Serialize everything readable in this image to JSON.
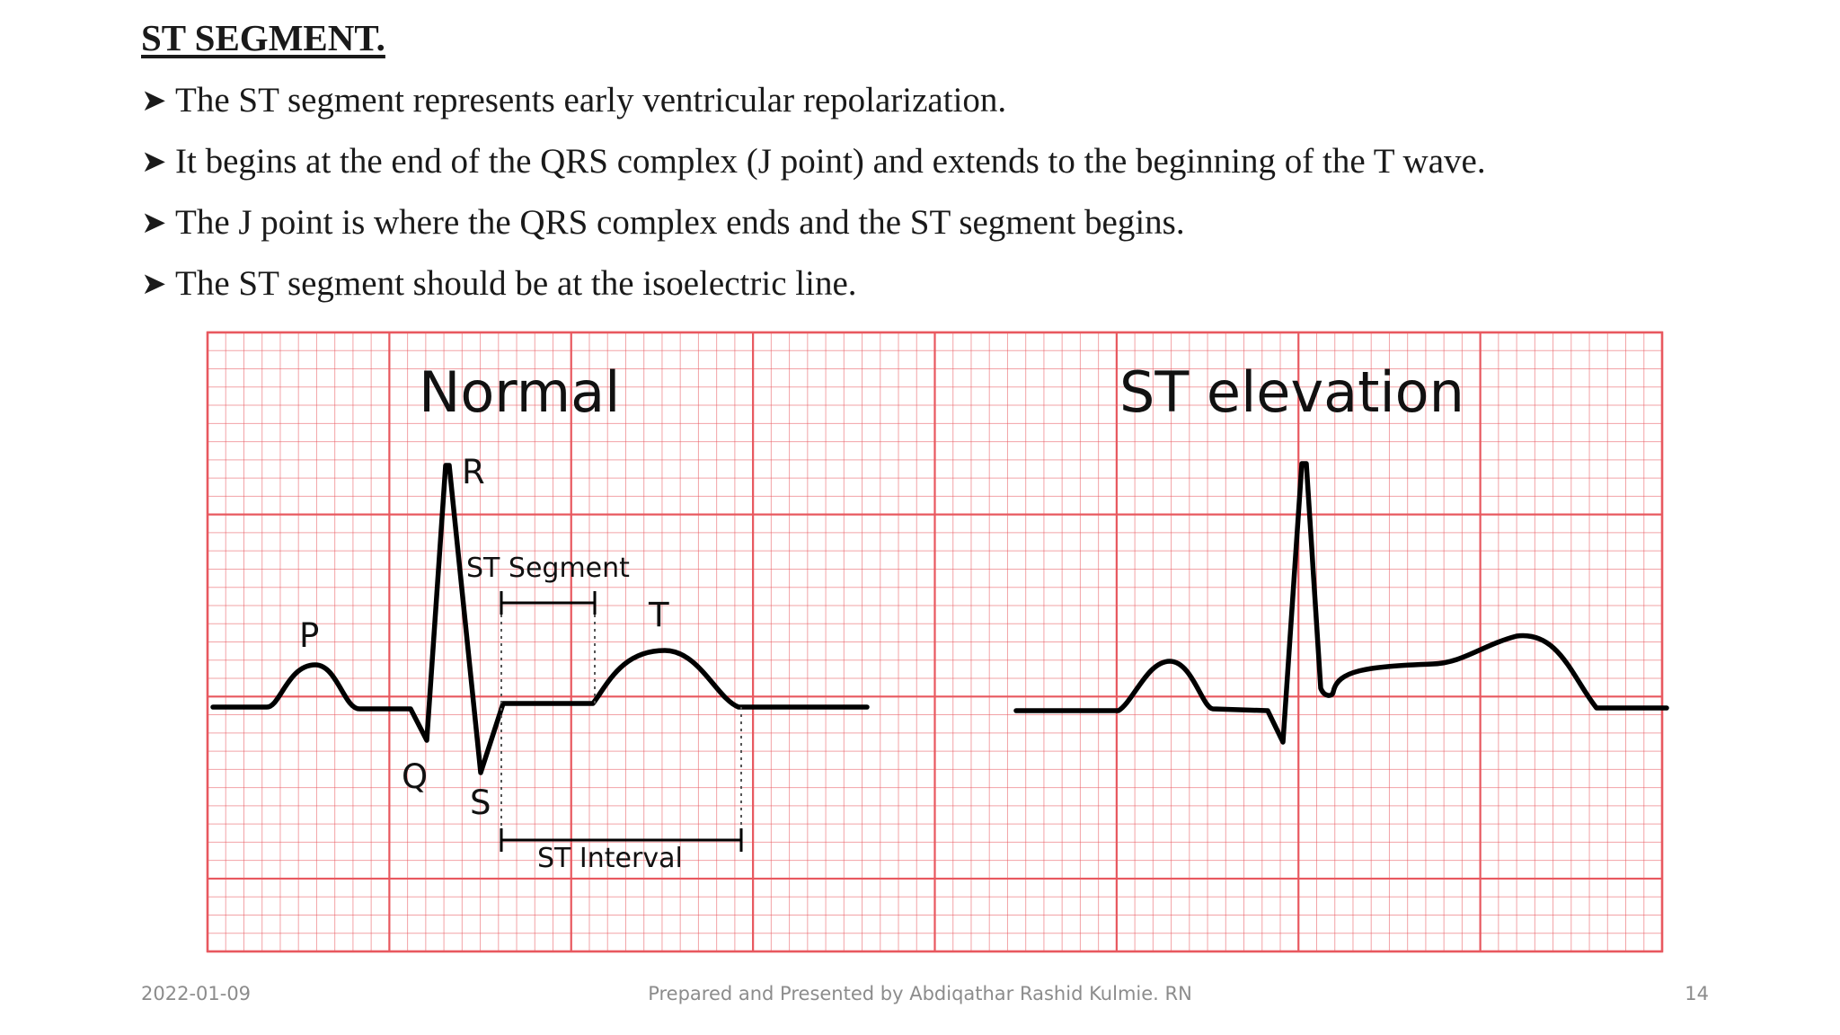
{
  "slide": {
    "title": "ST SEGMENT.",
    "bullets": [
      "The ST segment represents early ventricular repolarization.",
      "It begins at the end of the QRS complex (J point) and extends to the beginning of the T wave.",
      "The J point is where the QRS complex ends and the ST segment begins.",
      "The ST segment should be at the isoelectric line."
    ]
  },
  "diagram": {
    "panels": {
      "normal": "Normal",
      "elevation": "ST elevation"
    },
    "wave_labels": {
      "p": "P",
      "q": "Q",
      "r": "R",
      "s": "S",
      "t": "T"
    },
    "measure_labels": {
      "segment": "ST Segment",
      "interval": "ST Interval"
    },
    "colors": {
      "grid": "#e8585f",
      "trace": "#000000"
    }
  },
  "footer": {
    "date": "2022-01-09",
    "credit": "Prepared and Presented by Abdiqathar Rashid Kulmie. RN",
    "page": "14"
  }
}
